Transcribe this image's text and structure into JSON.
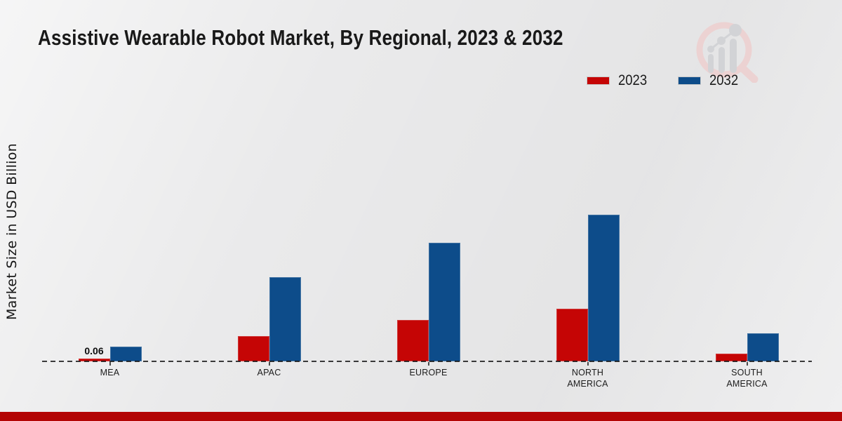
{
  "page": {
    "title": "Assistive Wearable Robot Market, By Regional, 2023 & 2032"
  },
  "axis": {
    "y_label": "Market Size in USD Billion"
  },
  "legend": {
    "items": [
      {
        "label": "2023",
        "color": "#c50505"
      },
      {
        "label": "2032",
        "color": "#0d4c8a"
      }
    ]
  },
  "colors": {
    "series_2023": "#c50505",
    "series_2032": "#0d4c8a",
    "footer_band": "#b30505",
    "background": "#eaeaeb",
    "baseline": "#333333"
  },
  "icons": {
    "watermark": "magnifier-bar-chart-logo-icon"
  },
  "chart_data": {
    "type": "bar",
    "title": "Assistive Wearable Robot Market, By Regional, 2023 & 2032",
    "ylabel": "Market Size in USD Billion",
    "xlabel": "",
    "categories": [
      "MEA",
      "APAC",
      "EUROPE",
      "NORTH AMERICA",
      "SOUTH AMERICA"
    ],
    "series": [
      {
        "name": "2023",
        "color": "#c50505",
        "values": [
          0.06,
          0.5,
          0.82,
          1.04,
          0.15
        ]
      },
      {
        "name": "2032",
        "color": "#0d4c8a",
        "values": [
          0.29,
          1.67,
          2.35,
          2.91,
          0.55
        ]
      }
    ],
    "ylim": [
      0,
      3.5
    ],
    "grid": false,
    "axis_line": "dashed-zero-line",
    "legend_position": "top-right",
    "bar_labels": [
      {
        "series": "2023",
        "category": "MEA",
        "text": "0.06"
      }
    ]
  }
}
